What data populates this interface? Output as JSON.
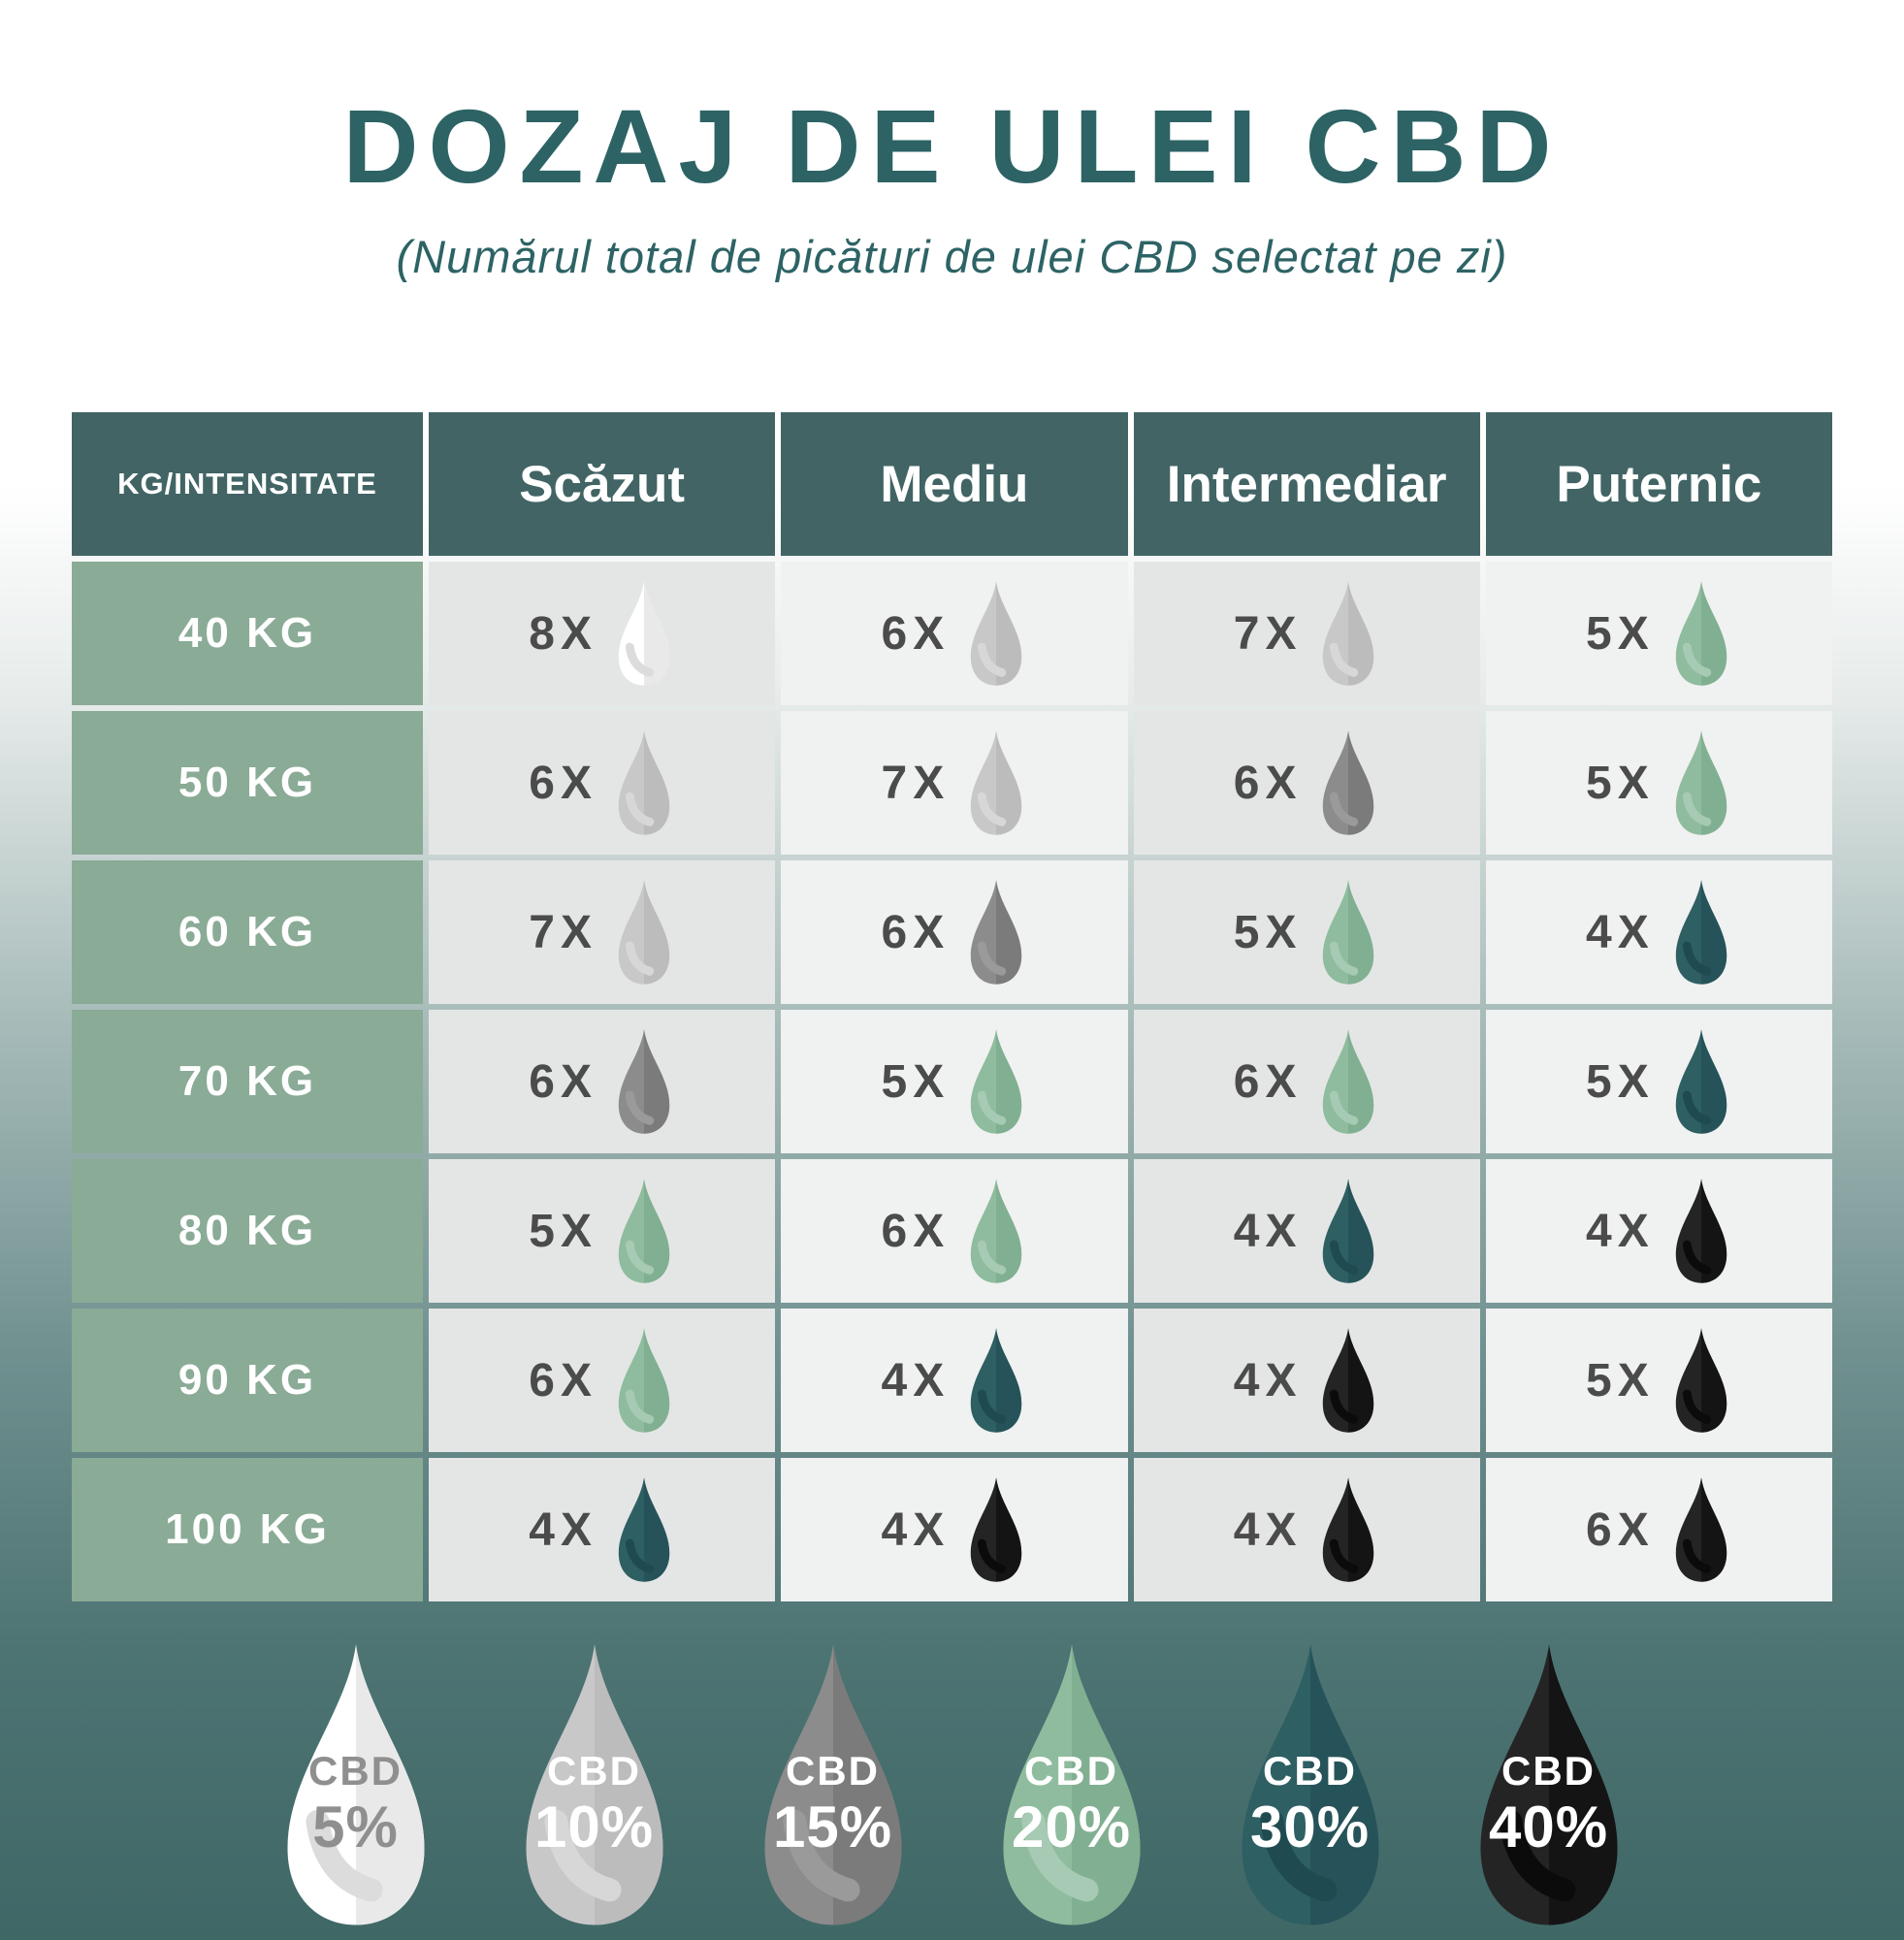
{
  "title": "DOZAJ DE ULEI CBD",
  "subtitle": "(Numărul total de picături de ulei CBD selectat pe zi)",
  "chart_data": {
    "type": "table",
    "title": "DOZAJ DE ULEI CBD",
    "subtitle": "(Numărul total de picături de ulei CBD selectat pe zi)",
    "corner_header": "KG/INTENSITATE",
    "columns": [
      "Scăzut",
      "Mediu",
      "Intermediar",
      "Puternic"
    ],
    "rows": [
      {
        "weight": "40 KG",
        "cells": [
          {
            "count": "8X",
            "cbd": "5"
          },
          {
            "count": "6X",
            "cbd": "10"
          },
          {
            "count": "7X",
            "cbd": "10"
          },
          {
            "count": "5X",
            "cbd": "20"
          }
        ]
      },
      {
        "weight": "50 KG",
        "cells": [
          {
            "count": "6X",
            "cbd": "10"
          },
          {
            "count": "7X",
            "cbd": "10"
          },
          {
            "count": "6X",
            "cbd": "15"
          },
          {
            "count": "5X",
            "cbd": "20"
          }
        ]
      },
      {
        "weight": "60 KG",
        "cells": [
          {
            "count": "7X",
            "cbd": "10"
          },
          {
            "count": "6X",
            "cbd": "15"
          },
          {
            "count": "5X",
            "cbd": "20"
          },
          {
            "count": "4X",
            "cbd": "30"
          }
        ]
      },
      {
        "weight": "70 KG",
        "cells": [
          {
            "count": "6X",
            "cbd": "15"
          },
          {
            "count": "5X",
            "cbd": "20"
          },
          {
            "count": "6X",
            "cbd": "20"
          },
          {
            "count": "5X",
            "cbd": "30"
          }
        ]
      },
      {
        "weight": "80 KG",
        "cells": [
          {
            "count": "5X",
            "cbd": "20"
          },
          {
            "count": "6X",
            "cbd": "20"
          },
          {
            "count": "4X",
            "cbd": "30"
          },
          {
            "count": "4X",
            "cbd": "40"
          }
        ]
      },
      {
        "weight": "90 KG",
        "cells": [
          {
            "count": "6X",
            "cbd": "20"
          },
          {
            "count": "4X",
            "cbd": "30"
          },
          {
            "count": "4X",
            "cbd": "40"
          },
          {
            "count": "5X",
            "cbd": "40"
          }
        ]
      },
      {
        "weight": "100 KG",
        "cells": [
          {
            "count": "4X",
            "cbd": "30"
          },
          {
            "count": "4X",
            "cbd": "40"
          },
          {
            "count": "4X",
            "cbd": "40"
          },
          {
            "count": "6X",
            "cbd": "40"
          }
        ]
      }
    ],
    "legend": [
      {
        "line1": "CBD",
        "line2": "5%",
        "cbd": "5"
      },
      {
        "line1": "CBD",
        "line2": "10%",
        "cbd": "10"
      },
      {
        "line1": "CBD",
        "line2": "15%",
        "cbd": "15"
      },
      {
        "line1": "CBD",
        "line2": "20%",
        "cbd": "20"
      },
      {
        "line1": "CBD",
        "line2": "30%",
        "cbd": "30"
      },
      {
        "line1": "CBD",
        "line2": "40%",
        "cbd": "40"
      }
    ]
  },
  "colors": {
    "title_text": "#2d6365",
    "header_bg": "#426465",
    "header_text": "#ffffff",
    "row_label_bg": "#8aab96",
    "row_label_text": "#ffffff",
    "cell_bg_odd": "#e4e6e5",
    "cell_bg_even": "#f0f1f1",
    "count_text": "#4b4b4b",
    "bg_gradient_stops": [
      "#ffffff 0%",
      "#ffffff 25%",
      "#e6ebea 36%",
      "#a9bdbb 52%",
      "#6f908f 70%",
      "#4d7473 85%",
      "#3f6766 100%"
    ],
    "drops": {
      "5": {
        "left": "#ffffff",
        "right": "#e9e9e9",
        "shine": "#dcdcdc",
        "text": "#8f8f8f"
      },
      "10": {
        "left": "#c8c8c8",
        "right": "#bcbcbc",
        "shine": "#d7d7d7",
        "text": "#ffffff"
      },
      "15": {
        "left": "#8c8c8c",
        "right": "#7b7b7b",
        "shine": "#9a9a9a",
        "text": "#ffffff"
      },
      "20": {
        "left": "#8fbc9e",
        "right": "#81af92",
        "shine": "#a6cab3",
        "text": "#ffffff"
      },
      "30": {
        "left": "#2e5f63",
        "right": "#265359",
        "shine": "#1f4b50",
        "text": "#ffffff"
      },
      "40": {
        "left": "#242424",
        "right": "#141414",
        "shine": "#0b0b0b",
        "text": "#ffffff"
      }
    }
  }
}
